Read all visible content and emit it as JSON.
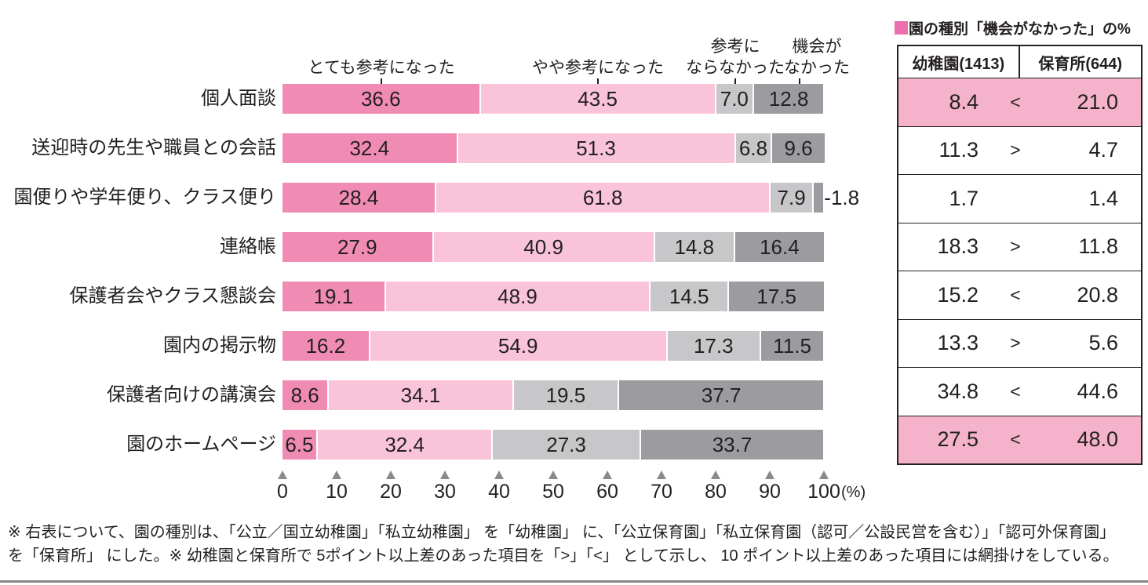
{
  "chart_data": {
    "type": "bar",
    "stacked": true,
    "orientation": "horizontal",
    "categories": [
      "個人面談",
      "送迎時の先生や職員との会話",
      "園便りや学年便り、クラス便り",
      "連絡帳",
      "保護者会やクラス懇談会",
      "園内の掲示物",
      "保護者向けの講演会",
      "園のホームページ"
    ],
    "series": [
      {
        "name": "とても参考になった",
        "color": "#f08bb4",
        "values": [
          36.6,
          32.4,
          28.4,
          27.9,
          19.1,
          16.2,
          8.6,
          6.5
        ]
      },
      {
        "name": "やや参考になった",
        "color": "#f9c4d9",
        "values": [
          43.5,
          51.3,
          61.8,
          40.9,
          48.9,
          54.9,
          34.1,
          32.4
        ]
      },
      {
        "name": "参考にならなかった",
        "color": "#c7c7c9",
        "values": [
          7.0,
          6.8,
          7.9,
          14.8,
          14.5,
          17.3,
          19.5,
          27.3
        ]
      },
      {
        "name": "機会がなかった",
        "color": "#9c9ca0",
        "values": [
          12.8,
          9.6,
          1.8,
          16.4,
          17.5,
          11.5,
          37.7,
          33.7
        ]
      }
    ],
    "legend_lines": [
      [
        "とても参考になった"
      ],
      [
        "やや参考になった"
      ],
      [
        "参考に",
        "ならなかった"
      ],
      [
        "機会が",
        "なかった"
      ]
    ],
    "x_ticks": [
      0,
      10,
      20,
      30,
      40,
      50,
      60,
      70,
      80,
      90,
      100
    ],
    "xlim": [
      0,
      100
    ],
    "x_unit_label": "(%)",
    "grid": false,
    "legend_position": "top",
    "outside_labels": [
      {
        "row": 2,
        "series": 3,
        "text": "-1.8"
      }
    ]
  },
  "table": {
    "title": "園の種別「機会がなかった」の%",
    "columns": [
      "幼稚園(1413)",
      "保育所(644)"
    ],
    "shade_color": "#f4b3ca",
    "rows": [
      {
        "kindergarten": "8.4",
        "symbol": "<",
        "nursery": "21.0",
        "shaded": true
      },
      {
        "kindergarten": "11.3",
        "symbol": ">",
        "nursery": "4.7",
        "shaded": false
      },
      {
        "kindergarten": "1.7",
        "symbol": "",
        "nursery": "1.4",
        "shaded": false
      },
      {
        "kindergarten": "18.3",
        "symbol": ">",
        "nursery": "11.8",
        "shaded": false
      },
      {
        "kindergarten": "15.2",
        "symbol": "<",
        "nursery": "20.8",
        "shaded": false
      },
      {
        "kindergarten": "13.3",
        "symbol": ">",
        "nursery": "5.6",
        "shaded": false
      },
      {
        "kindergarten": "34.8",
        "symbol": "<",
        "nursery": "44.6",
        "shaded": false
      },
      {
        "kindergarten": "27.5",
        "symbol": "<",
        "nursery": "48.0",
        "shaded": true
      }
    ]
  },
  "footnote": {
    "lines": [
      "※ 右表について、園の種別は、「公立／国立幼稚園」「私立幼稚園」 を「幼稚園」 に、「公立保育園」「私立保育園（認可／公設民営を含む）」「認可外保育園」",
      "を「保育所」 にした。※ 幼稚園と保育所で 5ポイント以上差のあった項目を「>」「<」 として示し、 10 ポイント以上差のあった項目には網掛けをしている。"
    ]
  }
}
